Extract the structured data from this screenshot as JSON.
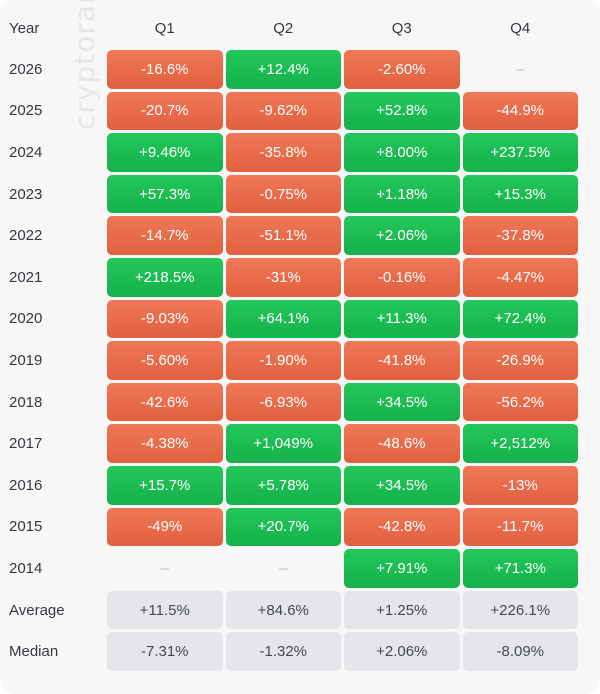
{
  "watermark": "cryptorank",
  "chart_data": {
    "type": "table",
    "columns": [
      "Year",
      "Q1",
      "Q2",
      "Q3",
      "Q4"
    ],
    "rows": [
      {
        "year": "2026",
        "values": [
          "-16.6%",
          "+12.4%",
          "-2.60%",
          "–"
        ]
      },
      {
        "year": "2025",
        "values": [
          "-20.7%",
          "-9.62%",
          "+52.8%",
          "-44.9%"
        ]
      },
      {
        "year": "2024",
        "values": [
          "+9.46%",
          "-35.8%",
          "+8.00%",
          "+237.5%"
        ]
      },
      {
        "year": "2023",
        "values": [
          "+57.3%",
          "-0.75%",
          "+1.18%",
          "+15.3%"
        ]
      },
      {
        "year": "2022",
        "values": [
          "-14.7%",
          "-51.1%",
          "+2.06%",
          "-37.8%"
        ]
      },
      {
        "year": "2021",
        "values": [
          "+218.5%",
          "-31%",
          "-0.16%",
          "-4.47%"
        ]
      },
      {
        "year": "2020",
        "values": [
          "-9.03%",
          "+64.1%",
          "+11.3%",
          "+72.4%"
        ]
      },
      {
        "year": "2019",
        "values": [
          "-5.60%",
          "-1.90%",
          "-41.8%",
          "-26.9%"
        ]
      },
      {
        "year": "2018",
        "values": [
          "-42.6%",
          "-6.93%",
          "+34.5%",
          "-56.2%"
        ]
      },
      {
        "year": "2017",
        "values": [
          "-4.38%",
          "+1,049%",
          "-48.6%",
          "+2,512%"
        ]
      },
      {
        "year": "2016",
        "values": [
          "+15.7%",
          "+5.78%",
          "+34.5%",
          "-13%"
        ]
      },
      {
        "year": "2015",
        "values": [
          "-49%",
          "+20.7%",
          "-42.8%",
          "-11.7%"
        ]
      },
      {
        "year": "2014",
        "values": [
          "–",
          "–",
          "+7.91%",
          "+71.3%"
        ]
      }
    ],
    "summary": [
      {
        "label": "Average",
        "values": [
          "+11.5%",
          "+84.6%",
          "+1.25%",
          "+226.1%"
        ]
      },
      {
        "label": "Median",
        "values": [
          "-7.31%",
          "-1.32%",
          "+2.06%",
          "-8.09%"
        ]
      }
    ],
    "colors": {
      "positive": "#1cbd52",
      "negative": "#e8694a",
      "summary": "#e4e6ea",
      "empty": "#f7f7f8"
    }
  }
}
